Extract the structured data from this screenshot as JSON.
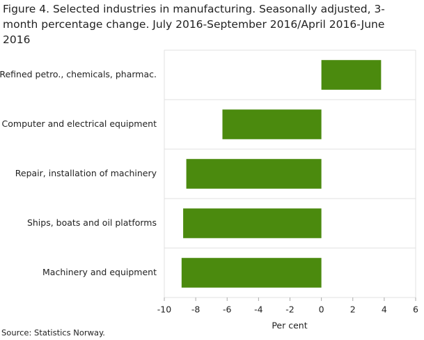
{
  "chart_data": {
    "type": "bar",
    "orientation": "horizontal",
    "title": "Figure 4. Selected industries in manufacturing. Seasonally adjusted, 3-month percentage change. July 2016-September 2016/April 2016-June 2016",
    "categories": [
      "Refined petro., chemicals, pharmac.",
      "Computer and electrical equipment",
      "Repair, installation of machinery",
      "Ships, boats and oil platforms",
      "Machinery and equipment"
    ],
    "values": [
      3.8,
      -6.3,
      -8.6,
      -8.8,
      -8.9
    ],
    "color": "#4b8a0e",
    "xlim": [
      -10,
      6
    ],
    "xticks": [
      -10,
      -8,
      -6,
      -4,
      -2,
      0,
      2,
      4,
      6
    ],
    "xlabel": "Per cent",
    "source": "Source: Statistics Norway."
  }
}
